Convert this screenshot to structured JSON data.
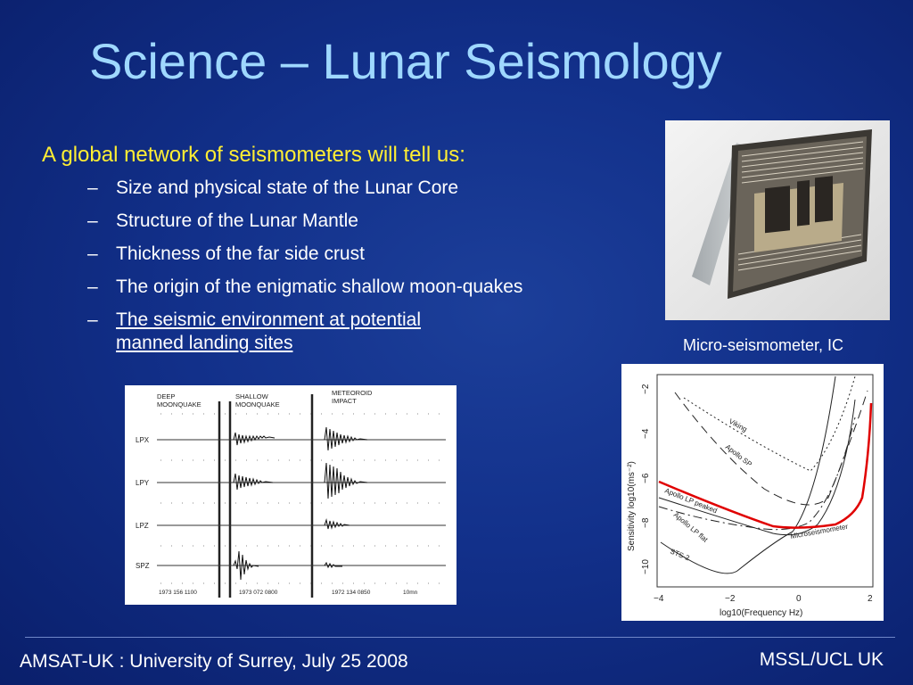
{
  "slide": {
    "title": "Science – Lunar Seismology",
    "lead": "A global network of seismometers will tell us:",
    "bullets": [
      "Size and physical state of the Lunar Core",
      "Structure of the Lunar Mantle",
      "Thickness of the far side crust",
      "The origin of the enigmatic shallow moon-quakes",
      "The seismic environment at potential manned landing sites"
    ],
    "dash": "–",
    "photo_caption": "Micro-seismometer, IC"
  },
  "seismogram": {
    "columns": [
      "DEEP MOONQUAKE",
      "SHALLOW MOONQUAKE",
      "METEOROID IMPACT"
    ],
    "channels": [
      "LPX",
      "LPY",
      "LPZ",
      "SPZ"
    ],
    "timestamps": [
      "1973 156 1100",
      "1973 072 0800",
      "1972 134 0850"
    ],
    "scale": "10mn"
  },
  "sensitivity_plot": {
    "ylabel": "Sensitivity log10(ms⁻²)",
    "xlabel": "log10(Frequency Hz)",
    "xticks": [
      "−4",
      "−2",
      "0",
      "2"
    ],
    "yticks": [
      "−2",
      "−4",
      "−6",
      "−8",
      "−10"
    ],
    "curves": [
      "Viking",
      "Apollo SP",
      "Apollo LP peaked",
      "Apollo LP flat",
      "STS-2",
      "Microseismometer"
    ],
    "highlight_color": "#e00000"
  },
  "footer": {
    "left": "AMSAT-UK :  University of Surrey, July 25 2008",
    "right": "MSSL/UCL UK"
  },
  "colors": {
    "background": "#12308a",
    "title": "#9fd8ff",
    "lead": "#ffee33",
    "text": "#ffffff"
  }
}
